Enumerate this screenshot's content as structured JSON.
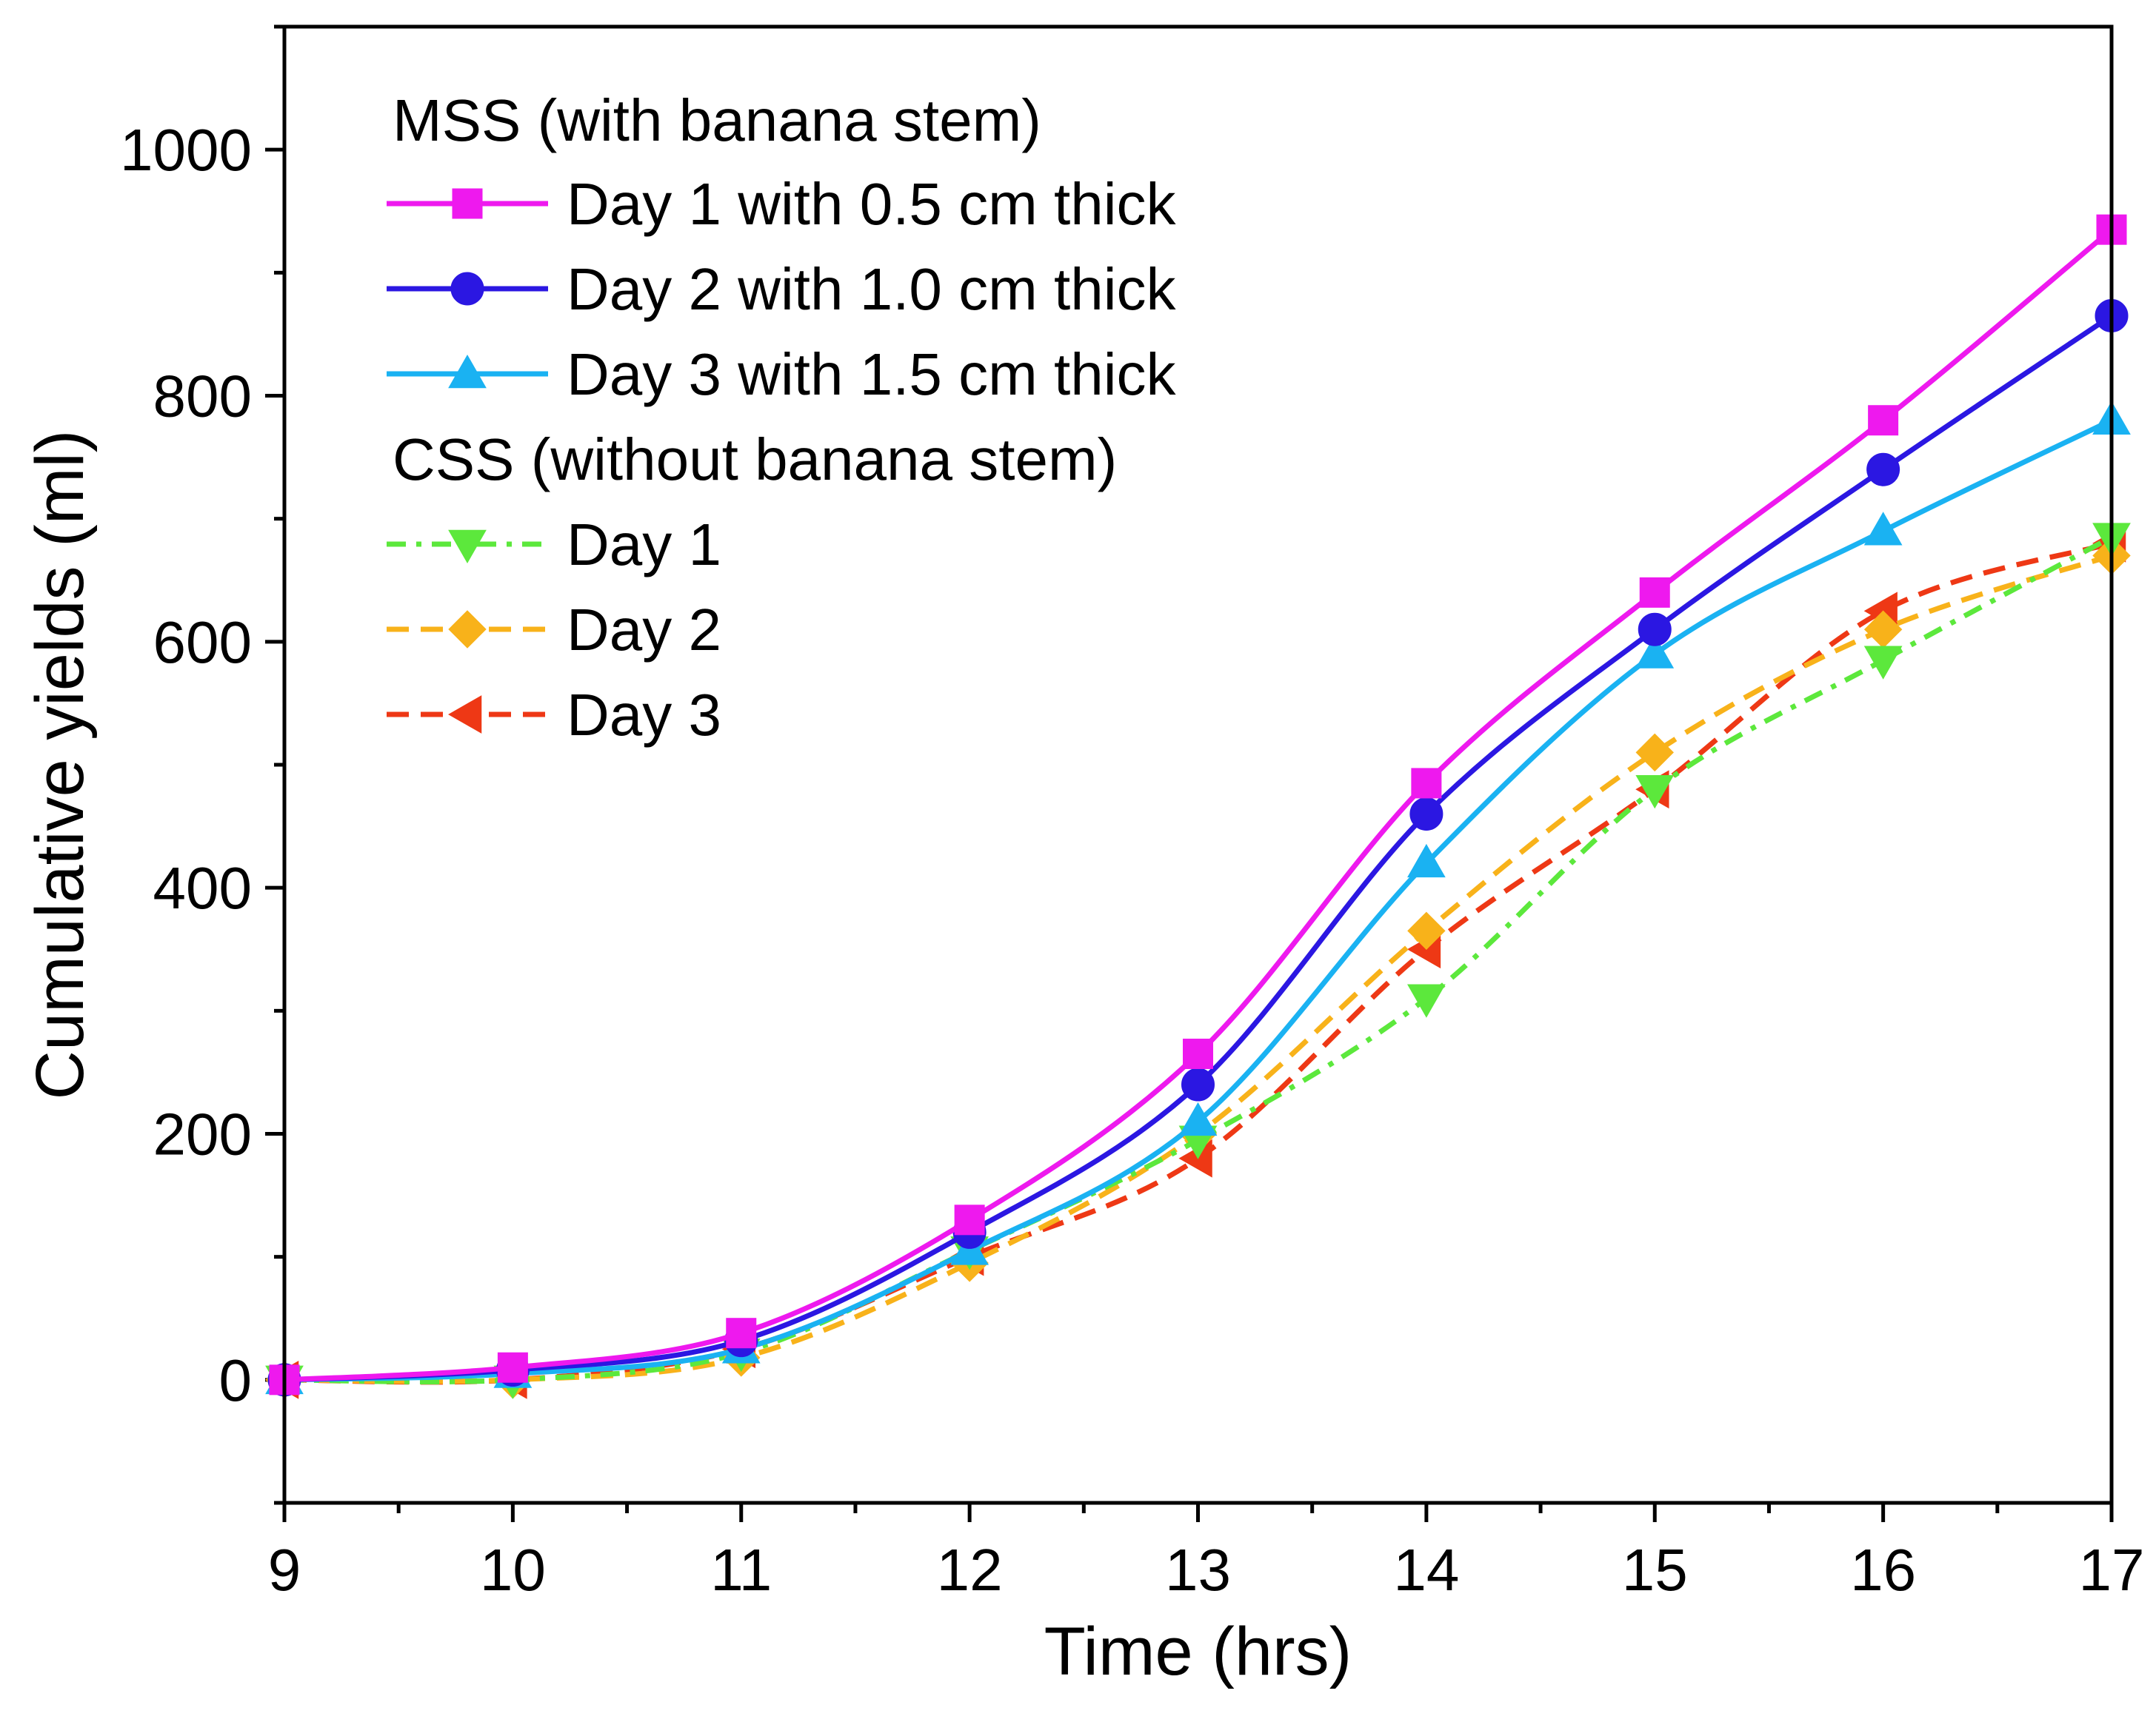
{
  "chart_data": {
    "type": "line",
    "title": "",
    "xlabel": "Time (hrs)",
    "ylabel": "Cumulative yields (ml)",
    "xlim": [
      9,
      17
    ],
    "ylim": [
      -100,
      1100
    ],
    "xticks": [
      9,
      10,
      11,
      12,
      13,
      14,
      15,
      16,
      17
    ],
    "yticks": [
      0,
      200,
      400,
      600,
      800,
      1000
    ],
    "x": [
      9,
      10,
      11,
      12,
      13,
      14,
      15,
      16,
      17
    ],
    "legend_position": "top-left",
    "legend_groups": [
      {
        "title": "MSS (with banana stem)",
        "series": [
          0,
          1,
          2
        ]
      },
      {
        "title": "CSS (without banana stem)",
        "series": [
          3,
          4,
          5
        ]
      }
    ],
    "series": [
      {
        "name": "Day 1 with 0.5 cm thick",
        "marker": "square",
        "line_style": "solid",
        "color": "#EE19EE",
        "values": [
          0,
          10,
          38,
          130,
          265,
          485,
          640,
          780,
          935
        ]
      },
      {
        "name": "Day 2 with 1.0 cm thick",
        "marker": "circle",
        "line_style": "solid",
        "color": "#2B17E2",
        "values": [
          0,
          8,
          32,
          120,
          240,
          460,
          610,
          740,
          865
        ]
      },
      {
        "name": "Day 3 with 1.5 cm thick",
        "marker": "triangle-up",
        "line_style": "solid",
        "color": "#1AB2F2",
        "values": [
          0,
          5,
          25,
          105,
          210,
          420,
          590,
          690,
          780
        ]
      },
      {
        "name": "Day 1",
        "marker": "triangle-down",
        "line_style": "dash-dot",
        "color": "#5CE83C",
        "values": [
          0,
          0,
          22,
          105,
          195,
          310,
          480,
          585,
          685
        ]
      },
      {
        "name": "Day 2",
        "marker": "diamond",
        "line_style": "dashed",
        "color": "#F8B21A",
        "values": [
          0,
          0,
          18,
          95,
          200,
          365,
          510,
          610,
          670
        ]
      },
      {
        "name": "Day 3",
        "marker": "triangle-left",
        "line_style": "dashed",
        "color": "#EE3815",
        "values": [
          0,
          0,
          25,
          100,
          180,
          350,
          480,
          625,
          680
        ]
      }
    ]
  }
}
